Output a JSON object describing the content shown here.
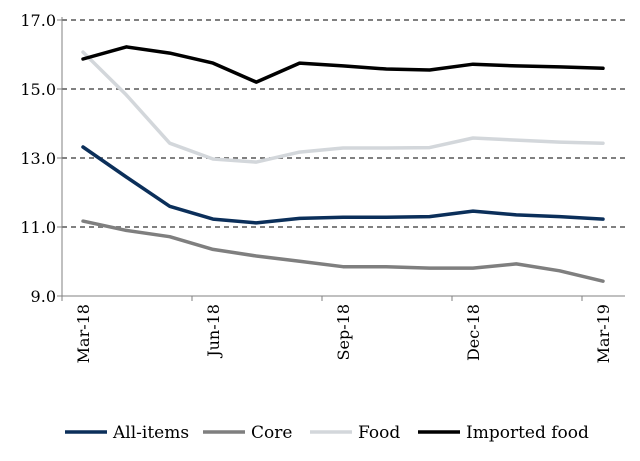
{
  "chart_data": {
    "type": "line",
    "title": "",
    "xlabel": "",
    "ylabel": "",
    "x": [
      "Mar-18",
      "Apr-18",
      "May-18",
      "Jun-18",
      "Jul-18",
      "Aug-18",
      "Sep-18",
      "Oct-18",
      "Nov-18",
      "Dec-18",
      "Jan-19",
      "Feb-19",
      "Mar-19"
    ],
    "x_tick_labels": [
      "Mar-18",
      "Jun-18",
      "Sep-18",
      "Dec-18",
      "Mar-19"
    ],
    "ylim": [
      9.0,
      17.0
    ],
    "y_ticks": [
      9.0,
      11.0,
      13.0,
      15.0,
      17.0
    ],
    "y_tick_labels": [
      "9.0",
      "11.0",
      "13.0",
      "15.0",
      "17.0"
    ],
    "grid": true,
    "legend_position": "bottom",
    "series": [
      {
        "name": "All-items",
        "color": "#0b2f5a",
        "values": [
          13.32,
          12.45,
          11.6,
          11.23,
          11.12,
          11.25,
          11.28,
          11.28,
          11.3,
          11.46,
          11.35,
          11.3,
          11.23
        ]
      },
      {
        "name": "Core",
        "color": "#7f7f7f",
        "values": [
          11.17,
          10.9,
          10.72,
          10.35,
          10.16,
          10.01,
          9.85,
          9.85,
          9.81,
          9.81,
          9.93,
          9.73,
          9.43
        ]
      },
      {
        "name": "Food",
        "color": "#d3d7db",
        "values": [
          16.07,
          14.83,
          13.43,
          12.97,
          12.88,
          13.17,
          13.29,
          13.29,
          13.3,
          13.58,
          13.52,
          13.46,
          13.43
        ]
      },
      {
        "name": "Imported food",
        "color": "#000000",
        "values": [
          15.87,
          16.22,
          16.04,
          15.75,
          15.2,
          15.75,
          15.67,
          15.58,
          15.55,
          15.72,
          15.67,
          15.64,
          15.6
        ]
      }
    ]
  }
}
